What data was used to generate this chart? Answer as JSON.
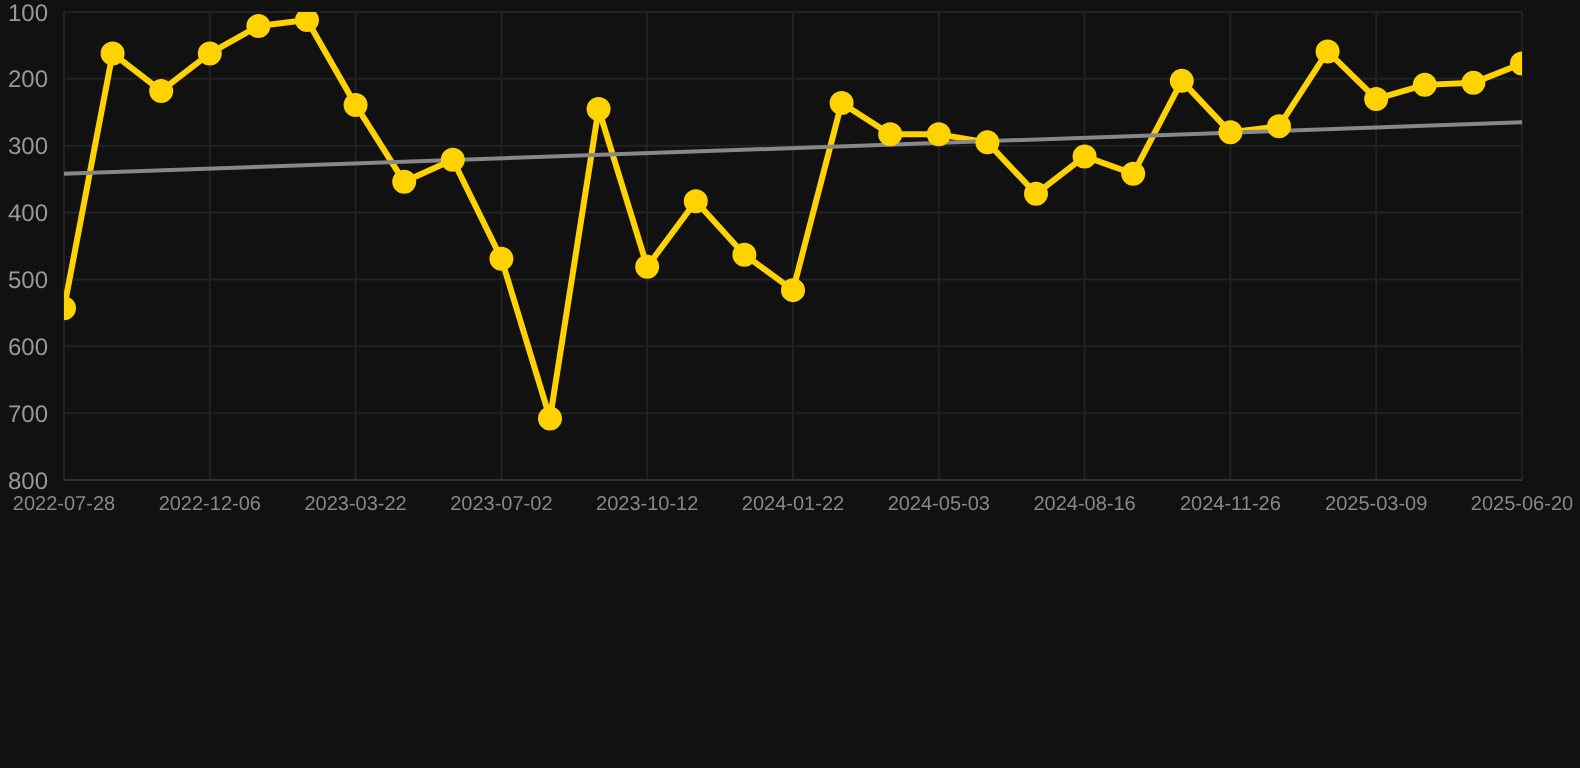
{
  "chart_data": {
    "type": "line",
    "categories": [
      "2022-07-28",
      null,
      null,
      "2022-12-06",
      null,
      null,
      "2023-03-22",
      null,
      null,
      "2023-07-02",
      null,
      null,
      "2023-10-12",
      null,
      null,
      "2024-01-22",
      null,
      null,
      "2024-05-03",
      null,
      null,
      "2024-08-16",
      null,
      null,
      "2024-11-26",
      null,
      null,
      "2025-03-09",
      null,
      null,
      "2025-06-20"
    ],
    "series": [
      {
        "color": "#ffd200",
        "values": [
          543,
          162,
          218,
          162,
          121,
          112,
          239,
          354,
          321,
          469,
          708,
          245,
          481,
          383,
          463,
          516,
          236,
          283,
          283,
          295,
          372,
          316,
          342,
          203,
          280,
          271,
          159,
          230,
          209,
          206,
          177
        ]
      },
      {
        "type": "line",
        "color": "#888888",
        "marker": "none",
        "values": [
          342,
          null,
          null,
          null,
          null,
          null,
          null,
          null,
          null,
          null,
          null,
          null,
          null,
          null,
          null,
          null,
          null,
          null,
          null,
          null,
          null,
          null,
          null,
          null,
          null,
          null,
          null,
          null,
          null,
          null,
          265
        ]
      }
    ],
    "ylim": [
      800,
      100
    ],
    "yticks": [
      100,
      200,
      300,
      400,
      500,
      600,
      700,
      800
    ],
    "grid": true,
    "marker": "circle",
    "line_style": "solid"
  }
}
